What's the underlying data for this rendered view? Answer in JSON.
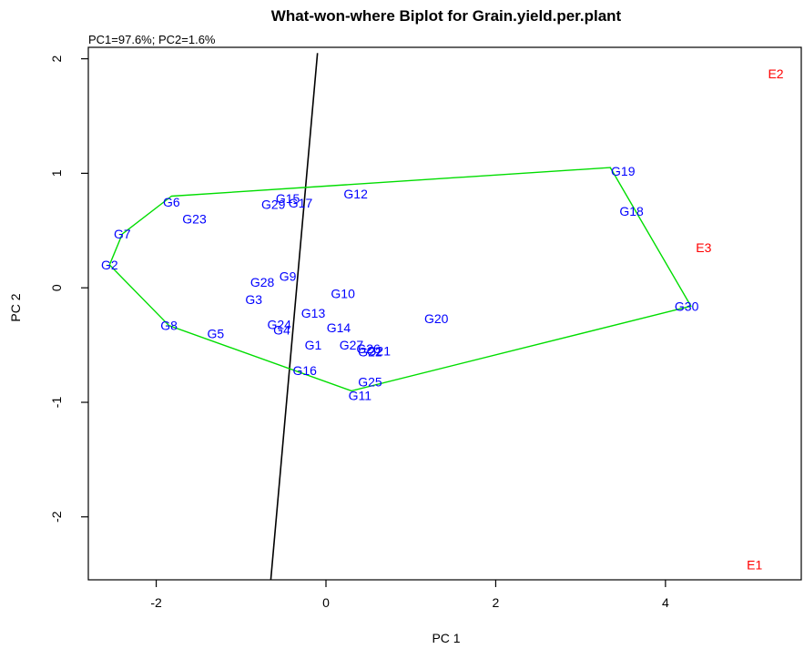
{
  "chart_data": {
    "type": "scatter",
    "title": "What-won-where Biplot for Grain.yield.per.plant",
    "subtitle": "PC1=97.6%; PC2=1.6%",
    "xlabel": "PC 1",
    "ylabel": "PC 2",
    "xlim": [
      -2.8,
      5.6
    ],
    "ylim": [
      -2.55,
      2.1
    ],
    "x_ticks": [
      -2,
      0,
      2,
      4
    ],
    "y_ticks": [
      -2,
      -1,
      0,
      1,
      2
    ],
    "x_tick_labels": [
      "-2",
      "0",
      "2",
      "4"
    ],
    "y_tick_labels": [
      "-2",
      "-1",
      "0",
      "1",
      "2"
    ],
    "grid": false,
    "colors": {
      "genotypes": "#0000ff",
      "environments": "#ff0000",
      "polygon": "#00dd00",
      "sector_line": "#000000",
      "axes": "#000000"
    },
    "series": [
      {
        "name": "Genotypes",
        "points": [
          {
            "label": "G1",
            "x": -0.15,
            "y": -0.5
          },
          {
            "label": "G2",
            "x": -2.55,
            "y": 0.2
          },
          {
            "label": "G3",
            "x": -0.85,
            "y": -0.1
          },
          {
            "label": "G4",
            "x": -0.55,
            "y": -0.35
          },
          {
            "label": "G5",
            "x": -1.3,
            "y": -0.4
          },
          {
            "label": "G6",
            "x": -1.82,
            "y": 0.75
          },
          {
            "label": "G7",
            "x": -2.4,
            "y": 0.47
          },
          {
            "label": "G8",
            "x": -1.85,
            "y": -0.33
          },
          {
            "label": "G9",
            "x": -0.45,
            "y": 0.1
          },
          {
            "label": "G10",
            "x": 0.2,
            "y": -0.05
          },
          {
            "label": "G11",
            "x": 0.4,
            "y": -0.94
          },
          {
            "label": "G12",
            "x": 0.35,
            "y": 0.82
          },
          {
            "label": "G13",
            "x": -0.15,
            "y": -0.22
          },
          {
            "label": "G14",
            "x": 0.15,
            "y": -0.35
          },
          {
            "label": "G15",
            "x": -0.45,
            "y": 0.78
          },
          {
            "label": "G16",
            "x": -0.25,
            "y": -0.72
          },
          {
            "label": "G17",
            "x": -0.32,
            "y": 0.74
          },
          {
            "label": "G18",
            "x": 3.6,
            "y": 0.67
          },
          {
            "label": "G19",
            "x": 3.5,
            "y": 1.02
          },
          {
            "label": "G20",
            "x": 1.3,
            "y": -0.27
          },
          {
            "label": "G21",
            "x": 0.6,
            "y": -0.55
          },
          {
            "label": "G22",
            "x": 0.5,
            "y": -0.56
          },
          {
            "label": "G23",
            "x": -1.55,
            "y": 0.6
          },
          {
            "label": "G24",
            "x": -0.55,
            "y": -0.32
          },
          {
            "label": "G25",
            "x": 0.5,
            "y": -0.82
          },
          {
            "label": "G26",
            "x": 0.5,
            "y": -0.53
          },
          {
            "label": "G27",
            "x": 0.3,
            "y": -0.5
          },
          {
            "label": "G28",
            "x": -0.75,
            "y": 0.05
          },
          {
            "label": "G29",
            "x": -0.6,
            "y": 0.73
          },
          {
            "label": "G30",
            "x": 4.25,
            "y": -0.16
          }
        ],
        "labels_shown": [
          {
            "text": "G1",
            "x": -0.15,
            "y": -0.5
          },
          {
            "text": "G2",
            "x": -2.55,
            "y": 0.2
          },
          {
            "text": "G3",
            "x": -0.85,
            "y": -0.1
          },
          {
            "text": "G4",
            "x": -0.52,
            "y": -0.37
          },
          {
            "text": "G5",
            "x": -1.3,
            "y": -0.4
          },
          {
            "text": "G6",
            "x": -1.82,
            "y": 0.75
          },
          {
            "text": "G7",
            "x": -2.4,
            "y": 0.47
          },
          {
            "text": "G8",
            "x": -1.85,
            "y": -0.33
          },
          {
            "text": "G9",
            "x": -0.45,
            "y": 0.1
          },
          {
            "text": "G10",
            "x": 0.2,
            "y": -0.05
          },
          {
            "text": "G11",
            "x": 0.4,
            "y": -0.94
          },
          {
            "text": "G12",
            "x": 0.35,
            "y": 0.82
          },
          {
            "text": "G13",
            "x": -0.15,
            "y": -0.22
          },
          {
            "text": "G14",
            "x": 0.15,
            "y": -0.35
          },
          {
            "text": "G15",
            "x": -0.45,
            "y": 0.78
          },
          {
            "text": "G16",
            "x": -0.25,
            "y": -0.72
          },
          {
            "text": "G17",
            "x": -0.3,
            "y": 0.74
          },
          {
            "text": "G18",
            "x": 3.6,
            "y": 0.67
          },
          {
            "text": "G19",
            "x": 3.5,
            "y": 1.02
          },
          {
            "text": "G20",
            "x": 1.3,
            "y": -0.27
          },
          {
            "text": "G21",
            "x": 0.62,
            "y": -0.55
          },
          {
            "text": "G22",
            "x": 0.52,
            "y": -0.56
          },
          {
            "text": "G23",
            "x": -1.55,
            "y": 0.6
          },
          {
            "text": "G24",
            "x": -0.55,
            "y": -0.32
          },
          {
            "text": "G25",
            "x": 0.52,
            "y": -0.82
          },
          {
            "text": "G26",
            "x": 0.5,
            "y": -0.53
          },
          {
            "text": "G27",
            "x": 0.3,
            "y": -0.5
          },
          {
            "text": "G28",
            "x": -0.75,
            "y": 0.05
          },
          {
            "text": "G29",
            "x": -0.62,
            "y": 0.73
          },
          {
            "text": "G30",
            "x": 4.25,
            "y": -0.16
          }
        ]
      },
      {
        "name": "Environments",
        "points": [
          {
            "label": "E1",
            "x": 5.05,
            "y": -2.42
          },
          {
            "label": "E2",
            "x": 5.3,
            "y": 1.87
          },
          {
            "label": "E3",
            "x": 4.45,
            "y": 0.35
          }
        ]
      }
    ],
    "polygon": [
      {
        "x": -1.82,
        "y": 0.8
      },
      {
        "x": 3.35,
        "y": 1.05
      },
      {
        "x": 4.3,
        "y": -0.16
      },
      {
        "x": 0.3,
        "y": -0.9
      },
      {
        "x": -1.85,
        "y": -0.33
      },
      {
        "x": -2.55,
        "y": 0.2
      },
      {
        "x": -2.4,
        "y": 0.47
      }
    ],
    "sector_line": [
      {
        "x": -0.1,
        "y": 2.05
      },
      {
        "x": -0.65,
        "y": -2.55
      }
    ]
  }
}
